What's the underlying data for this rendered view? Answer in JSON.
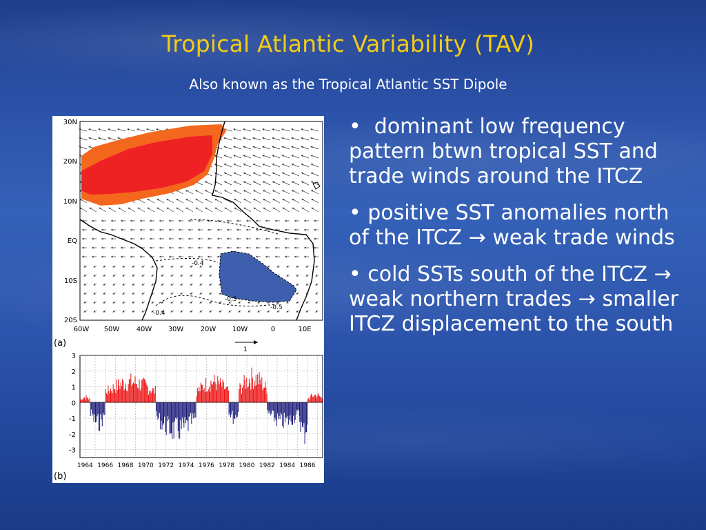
{
  "slide": {
    "title": "Tropical Atlantic Variability (TAV)",
    "subtitle": "Also known as the Tropical Atlantic SST Dipole"
  },
  "bullets": [
    {
      "marker": "•",
      "parts": [
        "dominant low frequency pattern btwn tropical SST and trade winds around the ITCZ"
      ]
    },
    {
      "marker": "•",
      "parts": [
        "positive SST anomalies north of the ITCZ",
        "weak trade winds"
      ]
    },
    {
      "marker": "•",
      "parts": [
        "cold SSTs south of the ITCZ",
        "weak northern trades",
        "smaller ITCZ displacement to the south"
      ]
    }
  ],
  "arrow_glyph": "→",
  "colors": {
    "title": "#f2cc16",
    "text": "#ffffff",
    "warm_fill": "#ee2222",
    "warm_outer_fill": "#f4681e",
    "cold_fill": "#3f5fae",
    "bar_positive": "#ee1111",
    "bar_negative": "#1a1a7a"
  },
  "figure": {
    "map": {
      "panel_label": "(a)",
      "lat_labels": [
        "30N",
        "20N",
        "10N",
        "EQ",
        "10S",
        "20S"
      ],
      "lon_labels": [
        "60W",
        "50W",
        "40W",
        "30W",
        "20W",
        "10W",
        "0",
        "10E"
      ],
      "contour_labels": [
        "-0.4",
        "-0.5",
        "-0.5",
        "-0.4"
      ],
      "vector_scale_label": "1"
    },
    "timeseries": {
      "panel_label": "(b)",
      "y_tick_labels": [
        "3",
        "2",
        "1",
        "0",
        "-1",
        "-2",
        "-3"
      ],
      "x_tick_labels": [
        "1964",
        "1966",
        "1968",
        "1970",
        "1972",
        "1974",
        "1976",
        "1978",
        "1980",
        "1982",
        "1984",
        "1986"
      ]
    }
  },
  "chart_data": {
    "type": "bar",
    "title": "",
    "xlabel": "",
    "ylabel": "",
    "ylim": [
      -3.5,
      3
    ],
    "xlim": [
      1963.5,
      1987.5
    ],
    "grid": true,
    "segments": [
      {
        "start": 1963.5,
        "end": 1964.5,
        "sign": "positive",
        "peak": 0.5
      },
      {
        "start": 1964.5,
        "end": 1966.0,
        "sign": "negative",
        "peak": -1.9
      },
      {
        "start": 1966.0,
        "end": 1971.0,
        "sign": "positive",
        "peak": 1.9
      },
      {
        "start": 1971.0,
        "end": 1975.0,
        "sign": "negative",
        "peak": -2.6
      },
      {
        "start": 1975.0,
        "end": 1978.2,
        "sign": "positive",
        "peak": 1.9
      },
      {
        "start": 1978.2,
        "end": 1979.2,
        "sign": "negative",
        "peak": -1.4
      },
      {
        "start": 1979.2,
        "end": 1982.0,
        "sign": "positive",
        "peak": 2.3
      },
      {
        "start": 1982.0,
        "end": 1985.2,
        "sign": "negative",
        "peak": -1.8
      },
      {
        "start": 1985.2,
        "end": 1986.0,
        "sign": "negative",
        "peak": -2.9
      },
      {
        "start": 1986.0,
        "end": 1987.5,
        "sign": "positive",
        "peak": 0.7
      }
    ]
  }
}
